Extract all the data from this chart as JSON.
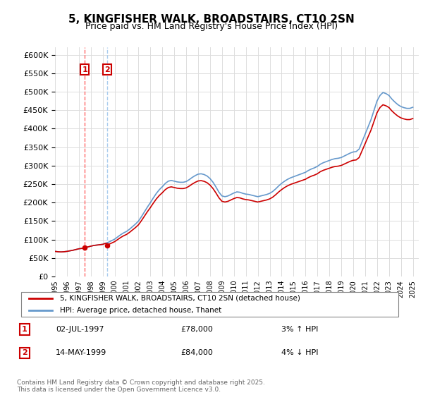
{
  "title": "5, KINGFISHER WALK, BROADSTAIRS, CT10 2SN",
  "subtitle": "Price paid vs. HM Land Registry's House Price Index (HPI)",
  "ylim": [
    0,
    620000
  ],
  "yticks": [
    0,
    50000,
    100000,
    150000,
    200000,
    250000,
    300000,
    350000,
    400000,
    450000,
    500000,
    550000,
    600000
  ],
  "year_start": 1995,
  "year_end": 2025,
  "legend_line1": "5, KINGFISHER WALK, BROADSTAIRS, CT10 2SN (detached house)",
  "legend_line2": "HPI: Average price, detached house, Thanet",
  "annotation1_label": "1",
  "annotation1_date": "02-JUL-1997",
  "annotation1_price": "£78,000",
  "annotation1_hpi": "3% ↑ HPI",
  "annotation1_year": 1997.5,
  "annotation2_label": "2",
  "annotation2_date": "14-MAY-1999",
  "annotation2_price": "£84,000",
  "annotation2_hpi": "4% ↓ HPI",
  "annotation2_year": 1999.375,
  "footnote": "Contains HM Land Registry data © Crown copyright and database right 2025.\nThis data is licensed under the Open Government Licence v3.0.",
  "line_color_red": "#cc0000",
  "line_color_blue": "#6699cc",
  "annotation_box_color": "#cc0000",
  "annotation2_box_color": "#cc0000",
  "vline1_color": "#ff6666",
  "vline2_color": "#aaccee",
  "background_color": "#ffffff",
  "grid_color": "#dddddd",
  "hpi_data": {
    "years": [
      1995.0,
      1995.25,
      1995.5,
      1995.75,
      1996.0,
      1996.25,
      1996.5,
      1996.75,
      1997.0,
      1997.25,
      1997.5,
      1997.75,
      1998.0,
      1998.25,
      1998.5,
      1998.75,
      1999.0,
      1999.25,
      1999.5,
      1999.75,
      2000.0,
      2000.25,
      2000.5,
      2000.75,
      2001.0,
      2001.25,
      2001.5,
      2001.75,
      2002.0,
      2002.25,
      2002.5,
      2002.75,
      2003.0,
      2003.25,
      2003.5,
      2003.75,
      2004.0,
      2004.25,
      2004.5,
      2004.75,
      2005.0,
      2005.25,
      2005.5,
      2005.75,
      2006.0,
      2006.25,
      2006.5,
      2006.75,
      2007.0,
      2007.25,
      2007.5,
      2007.75,
      2008.0,
      2008.25,
      2008.5,
      2008.75,
      2009.0,
      2009.25,
      2009.5,
      2009.75,
      2010.0,
      2010.25,
      2010.5,
      2010.75,
      2011.0,
      2011.25,
      2011.5,
      2011.75,
      2012.0,
      2012.25,
      2012.5,
      2012.75,
      2013.0,
      2013.25,
      2013.5,
      2013.75,
      2014.0,
      2014.25,
      2014.5,
      2014.75,
      2015.0,
      2015.25,
      2015.5,
      2015.75,
      2016.0,
      2016.25,
      2016.5,
      2016.75,
      2017.0,
      2017.25,
      2017.5,
      2017.75,
      2018.0,
      2018.25,
      2018.5,
      2018.75,
      2019.0,
      2019.25,
      2019.5,
      2019.75,
      2020.0,
      2020.25,
      2020.5,
      2020.75,
      2021.0,
      2021.25,
      2021.5,
      2021.75,
      2022.0,
      2022.25,
      2022.5,
      2022.75,
      2023.0,
      2023.25,
      2023.5,
      2023.75,
      2024.0,
      2024.25,
      2024.5,
      2024.75,
      2025.0
    ],
    "values": [
      68000,
      67000,
      66500,
      67000,
      68000,
      69500,
      71000,
      73000,
      75000,
      76000,
      78000,
      80000,
      82000,
      84000,
      85000,
      86000,
      87000,
      90000,
      93000,
      97000,
      101000,
      107000,
      113000,
      118000,
      122000,
      128000,
      135000,
      142000,
      150000,
      162000,
      175000,
      188000,
      200000,
      213000,
      225000,
      235000,
      243000,
      252000,
      258000,
      260000,
      258000,
      256000,
      255000,
      255000,
      257000,
      262000,
      268000,
      273000,
      277000,
      278000,
      276000,
      272000,
      265000,
      255000,
      242000,
      228000,
      218000,
      216000,
      218000,
      222000,
      226000,
      229000,
      228000,
      225000,
      223000,
      222000,
      220000,
      218000,
      216000,
      218000,
      220000,
      222000,
      225000,
      230000,
      237000,
      245000,
      252000,
      258000,
      263000,
      267000,
      270000,
      273000,
      276000,
      279000,
      282000,
      287000,
      291000,
      294000,
      298000,
      304000,
      308000,
      311000,
      314000,
      317000,
      319000,
      320000,
      322000,
      326000,
      330000,
      334000,
      337000,
      338000,
      345000,
      365000,
      385000,
      405000,
      425000,
      450000,
      475000,
      490000,
      498000,
      495000,
      490000,
      480000,
      472000,
      465000,
      460000,
      457000,
      455000,
      455000,
      458000
    ]
  },
  "price_data": {
    "years": [
      1997.5,
      1999.375
    ],
    "values": [
      78000,
      84000
    ]
  }
}
